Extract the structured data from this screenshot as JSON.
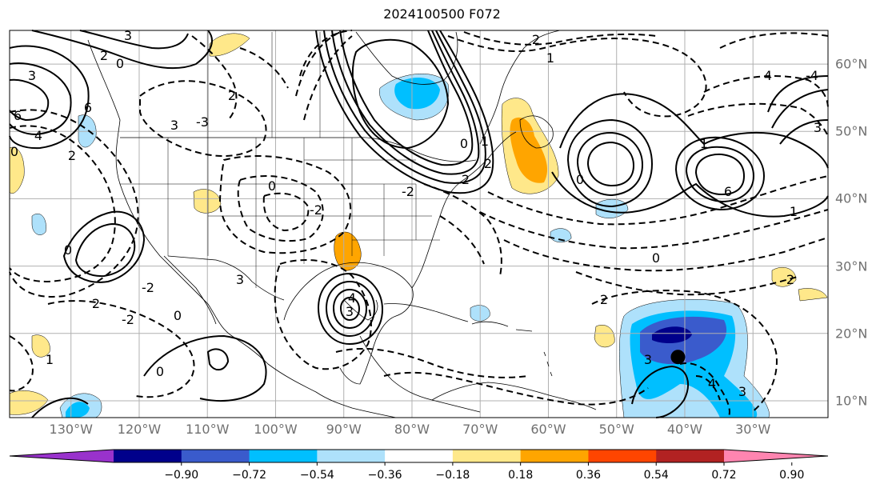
{
  "title": "2024100500 F072",
  "map": {
    "projection": "plate-carree",
    "lon_range": [
      -139,
      -19
    ],
    "lat_range": [
      7.5,
      65
    ],
    "lon_tick_labels": [
      "130°W",
      "120°W",
      "110°W",
      "100°W",
      "90°W",
      "80°W",
      "70°W",
      "60°W",
      "50°W",
      "40°W",
      "30°W"
    ],
    "lat_tick_labels": [
      "10°N",
      "20°N",
      "30°N",
      "40°N",
      "50°N",
      "60°N"
    ],
    "contour_labels": [
      "3",
      "0",
      "3",
      "2",
      "6",
      "6",
      "0",
      "4",
      "2",
      "3",
      "-3",
      "2",
      "0",
      "-2",
      "-2",
      "-2",
      "2",
      "0",
      "3",
      "4",
      "3",
      "0",
      "2",
      "-2",
      "1",
      "2",
      "1",
      "2",
      "0",
      "6",
      "4",
      "2",
      "-4",
      "1",
      "3",
      "4",
      "2",
      "3",
      "1",
      "0",
      "0",
      "1",
      "0",
      "3"
    ],
    "marker": {
      "name": "storm-center",
      "lon": -41,
      "lat": 16.5,
      "color": "#000000"
    }
  },
  "colorbar": {
    "tick_labels": [
      "−0.90",
      "−0.72",
      "−0.54",
      "−0.36",
      "−0.18",
      "0.18",
      "0.36",
      "0.54",
      "0.72",
      "0.90"
    ],
    "colors": [
      "#9932cc",
      "#00008b",
      "#3a5bcc",
      "#00bfff",
      "#aee1fb",
      "#ffffff",
      "#ffe88a",
      "#ffa500",
      "#ff4500",
      "#b22222",
      "#ff85b0"
    ]
  },
  "colors": {
    "grid": "#b0b0b0",
    "tick_text": "#707070",
    "contour": "#000000",
    "coastline": "#000000"
  }
}
